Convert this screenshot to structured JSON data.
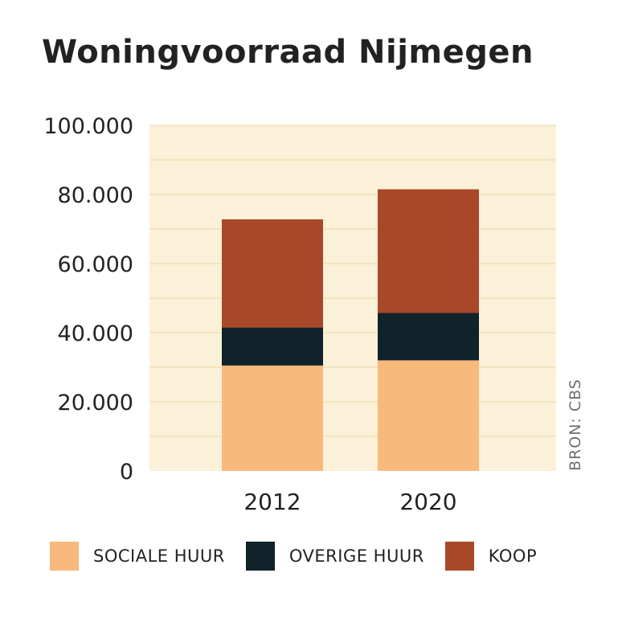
{
  "title": "Woningvoorraad Nijmegen",
  "source": "BRON: CBS",
  "colors": {
    "background": "#fbf0d8",
    "grid": "#e8d9a3",
    "text": "#222222",
    "source_text": "#6f6f6f"
  },
  "legend": [
    {
      "label": "SOCIALE HUUR",
      "color": "#f8b97d"
    },
    {
      "label": "OVERIGE HUUR",
      "color": "#10222a"
    },
    {
      "label": "KOOP",
      "color": "#a84828"
    }
  ],
  "chart_data": {
    "type": "bar",
    "stacked": true,
    "title": "Woningvoorraad Nijmegen",
    "xlabel": "",
    "ylabel": "",
    "categories": [
      "2012",
      "2020"
    ],
    "series": [
      {
        "name": "SOCIALE HUUR",
        "color": "#f8b97d",
        "values": [
          30500,
          32000
        ]
      },
      {
        "name": "OVERIGE HUUR",
        "color": "#10222a",
        "values": [
          11000,
          13700
        ]
      },
      {
        "name": "KOOP",
        "color": "#a84828",
        "values": [
          31300,
          35800
        ]
      }
    ],
    "ylim": [
      0,
      100000
    ],
    "yticks": [
      0,
      20000,
      40000,
      60000,
      80000,
      100000
    ],
    "ytick_labels": [
      "0",
      "20.000",
      "40.000",
      "60.000",
      "80.000",
      "100.000"
    ],
    "grid_step": 10000,
    "grid": true,
    "legend_position": "bottom",
    "source": "BRON: CBS"
  }
}
